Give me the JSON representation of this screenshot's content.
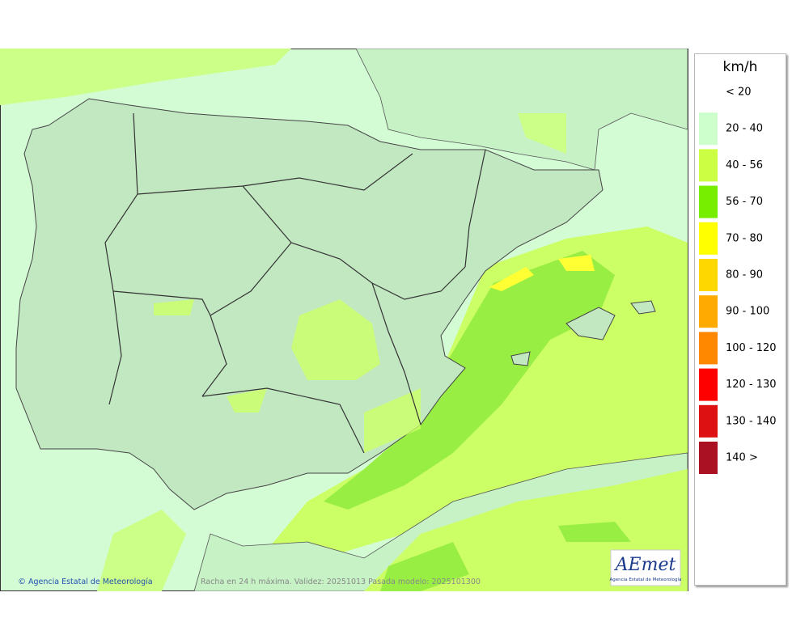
{
  "map": {
    "credit": "Agencia Estatal de Meteorología",
    "caption": "Racha en 24 h máxima. Validez: 20251013 Pasada modelo: 2025101300",
    "logo": {
      "text": "AEmet",
      "subtitle": "Agencia Estatal de Meteorología"
    }
  },
  "legend": {
    "unit": "km/h",
    "items": [
      {
        "label": "< 20",
        "color": "#ffffff"
      },
      {
        "label": "20 - 40",
        "color": "#ccffcc"
      },
      {
        "label": "40 - 56",
        "color": "#ccff44"
      },
      {
        "label": "56 - 70",
        "color": "#77ee00"
      },
      {
        "label": "70 - 80",
        "color": "#ffff00"
      },
      {
        "label": "80 - 90",
        "color": "#ffd700"
      },
      {
        "label": "90 - 100",
        "color": "#ffaa00"
      },
      {
        "label": "100 - 120",
        "color": "#ff8800"
      },
      {
        "label": "120 - 130",
        "color": "#ff0000"
      },
      {
        "label": "130 - 140",
        "color": "#dd1111"
      },
      {
        "label": "140 >",
        "color": "#aa1122"
      }
    ]
  }
}
